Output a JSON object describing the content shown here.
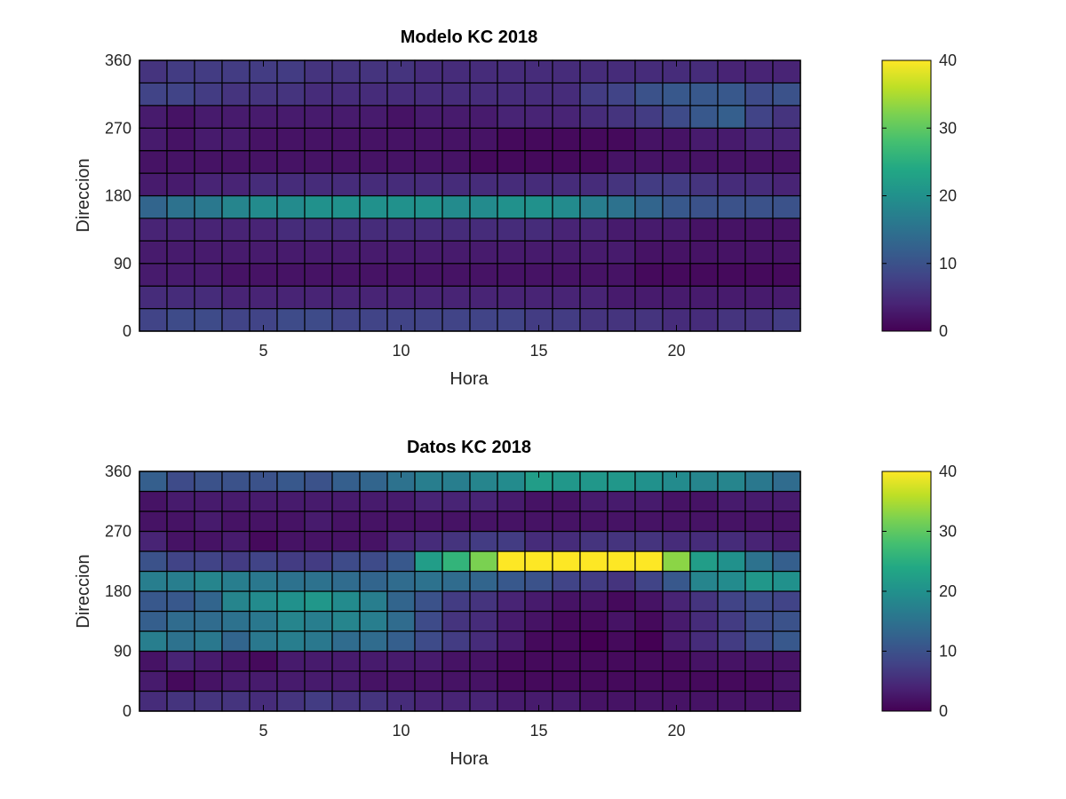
{
  "chart_data": [
    {
      "type": "heatmap",
      "title": "Modelo KC 2018",
      "xlabel": "Hora",
      "ylabel": "Direccion",
      "x_range": [
        0.5,
        24.5
      ],
      "y_range": [
        0,
        360
      ],
      "xticks": [
        5,
        10,
        15,
        20
      ],
      "yticks": [
        0,
        90,
        180,
        270,
        360
      ],
      "colorbar": {
        "min": 0,
        "max": 40,
        "ticks": [
          0,
          10,
          20,
          30,
          40
        ],
        "colormap": "viridis"
      },
      "x_bins": [
        1,
        2,
        3,
        4,
        5,
        6,
        7,
        8,
        9,
        10,
        11,
        12,
        13,
        14,
        15,
        16,
        17,
        18,
        19,
        20,
        21,
        22,
        23,
        24
      ],
      "y_bins": [
        15,
        45,
        75,
        105,
        135,
        165,
        195,
        225,
        255,
        285,
        315,
        345
      ],
      "values": [
        [
          8,
          9,
          9,
          8,
          8,
          9,
          9,
          8,
          8,
          8,
          8,
          8,
          8,
          8,
          7,
          7,
          6,
          6,
          6,
          5,
          5,
          6,
          6,
          7
        ],
        [
          5,
          5,
          5,
          4,
          4,
          4,
          4,
          4,
          4,
          4,
          4,
          4,
          4,
          4,
          4,
          4,
          4,
          3,
          3,
          3,
          3,
          3,
          3,
          3
        ],
        [
          3,
          3,
          3,
          2,
          2,
          2,
          2,
          2,
          2,
          2,
          2,
          2,
          2,
          2,
          2,
          2,
          2,
          2,
          1,
          1,
          1,
          1,
          1,
          1
        ],
        [
          3,
          3,
          3,
          3,
          3,
          3,
          3,
          3,
          3,
          3,
          3,
          3,
          3,
          3,
          3,
          3,
          3,
          3,
          2,
          2,
          2,
          2,
          2,
          2
        ],
        [
          4,
          4,
          4,
          4,
          4,
          5,
          5,
          5,
          5,
          5,
          5,
          5,
          5,
          5,
          5,
          4,
          4,
          3,
          3,
          3,
          2,
          2,
          2,
          2
        ],
        [
          13,
          15,
          16,
          18,
          19,
          19,
          20,
          20,
          20,
          20,
          20,
          19,
          19,
          20,
          20,
          19,
          17,
          15,
          13,
          11,
          10,
          10,
          10,
          10
        ],
        [
          3,
          3,
          4,
          4,
          5,
          5,
          5,
          5,
          5,
          5,
          5,
          5,
          5,
          5,
          5,
          5,
          5,
          6,
          7,
          7,
          6,
          5,
          5,
          4
        ],
        [
          2,
          2,
          2,
          2,
          2,
          2,
          2,
          2,
          2,
          2,
          2,
          2,
          1,
          1,
          1,
          1,
          1,
          2,
          2,
          2,
          2,
          2,
          2,
          2
        ],
        [
          3,
          2,
          3,
          3,
          2,
          2,
          2,
          2,
          2,
          2,
          2,
          2,
          2,
          1,
          1,
          1,
          1,
          1,
          2,
          2,
          3,
          3,
          4,
          4
        ],
        [
          3,
          2,
          3,
          3,
          3,
          3,
          3,
          3,
          3,
          2,
          3,
          3,
          3,
          4,
          4,
          4,
          5,
          6,
          7,
          9,
          11,
          12,
          8,
          6
        ],
        [
          8,
          8,
          7,
          6,
          6,
          6,
          5,
          5,
          5,
          5,
          5,
          5,
          5,
          5,
          5,
          5,
          7,
          8,
          10,
          11,
          11,
          11,
          9,
          10
        ],
        [
          6,
          7,
          7,
          7,
          7,
          7,
          6,
          6,
          6,
          6,
          5,
          5,
          5,
          5,
          5,
          5,
          5,
          5,
          5,
          5,
          5,
          4,
          4,
          4
        ]
      ]
    },
    {
      "type": "heatmap",
      "title": "Datos KC 2018",
      "xlabel": "Hora",
      "ylabel": "Direccion",
      "x_range": [
        0.5,
        24.5
      ],
      "y_range": [
        0,
        360
      ],
      "xticks": [
        5,
        10,
        15,
        20
      ],
      "yticks": [
        0,
        90,
        180,
        270,
        360
      ],
      "colorbar": {
        "min": 0,
        "max": 40,
        "ticks": [
          0,
          10,
          20,
          30,
          40
        ],
        "colormap": "viridis"
      },
      "x_bins": [
        1,
        2,
        3,
        4,
        5,
        6,
        7,
        8,
        9,
        10,
        11,
        12,
        13,
        14,
        15,
        16,
        17,
        18,
        19,
        20,
        21,
        22,
        23,
        24
      ],
      "y_bins": [
        15,
        45,
        75,
        105,
        135,
        165,
        195,
        225,
        255,
        285,
        315,
        345
      ],
      "values": [
        [
          5,
          6,
          6,
          6,
          5,
          6,
          7,
          6,
          6,
          5,
          4,
          4,
          4,
          3,
          3,
          3,
          2,
          2,
          2,
          2,
          2,
          2,
          2,
          2
        ],
        [
          3,
          1,
          2,
          3,
          3,
          3,
          3,
          3,
          2,
          2,
          2,
          2,
          2,
          1,
          1,
          1,
          1,
          1,
          1,
          1,
          1,
          1,
          1,
          2
        ],
        [
          2,
          4,
          3,
          2,
          1,
          3,
          3,
          3,
          3,
          3,
          3,
          2,
          2,
          1,
          1,
          1,
          1,
          1,
          1,
          1,
          2,
          2,
          2,
          2
        ],
        [
          17,
          15,
          16,
          13,
          16,
          17,
          16,
          14,
          14,
          12,
          9,
          7,
          5,
          3,
          1,
          1,
          0,
          1,
          0,
          3,
          5,
          7,
          9,
          11
        ],
        [
          12,
          14,
          14,
          15,
          16,
          18,
          17,
          18,
          17,
          14,
          9,
          6,
          5,
          3,
          2,
          1,
          1,
          2,
          1,
          3,
          5,
          7,
          9,
          10
        ],
        [
          11,
          11,
          13,
          18,
          19,
          20,
          21,
          19,
          17,
          13,
          10,
          7,
          6,
          4,
          3,
          2,
          2,
          1,
          2,
          4,
          6,
          8,
          9,
          8
        ],
        [
          17,
          17,
          18,
          17,
          16,
          15,
          15,
          14,
          13,
          14,
          15,
          14,
          13,
          11,
          10,
          8,
          7,
          6,
          8,
          11,
          18,
          19,
          21,
          20
        ],
        [
          10,
          8,
          8,
          7,
          8,
          7,
          7,
          9,
          9,
          11,
          22,
          26,
          32,
          40,
          40,
          40,
          40,
          40,
          40,
          33,
          22,
          20,
          15,
          12
        ],
        [
          4,
          2,
          2,
          3,
          1,
          2,
          2,
          2,
          2,
          4,
          5,
          6,
          7,
          7,
          5,
          5,
          6,
          6,
          6,
          5,
          5,
          5,
          4,
          3
        ],
        [
          2,
          2,
          3,
          2,
          2,
          2,
          3,
          2,
          2,
          2,
          2,
          2,
          2,
          2,
          2,
          2,
          2,
          2,
          2,
          2,
          2,
          2,
          2,
          2
        ],
        [
          2,
          3,
          3,
          3,
          3,
          3,
          3,
          3,
          3,
          3,
          4,
          4,
          4,
          3,
          2,
          2,
          3,
          3,
          3,
          2,
          2,
          3,
          3,
          3
        ],
        [
          12,
          9,
          10,
          10,
          10,
          11,
          10,
          12,
          13,
          15,
          17,
          17,
          18,
          19,
          22,
          21,
          21,
          21,
          20,
          19,
          18,
          18,
          16,
          14
        ]
      ]
    }
  ]
}
